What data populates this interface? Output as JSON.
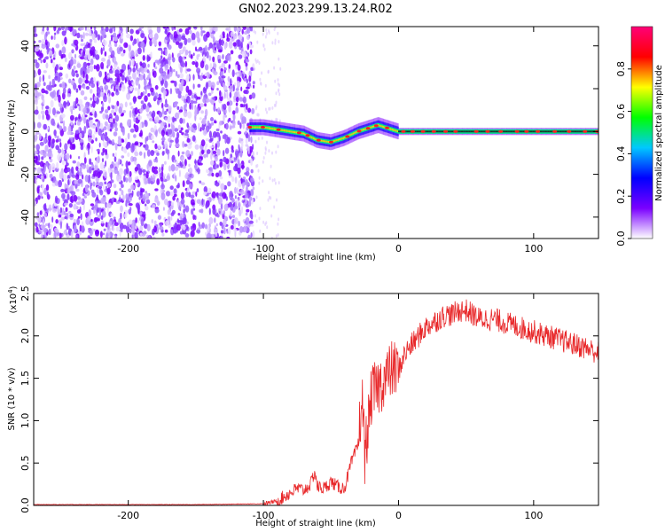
{
  "title": "GN02.2023.299.13.24.R02",
  "chart_data": [
    {
      "type": "heatmap",
      "xlabel": "Height of straight line (km)",
      "ylabel": "Frequency (Hz)",
      "xlim": [
        -270,
        148
      ],
      "ylim": [
        -50,
        49
      ],
      "xticks": [
        -200,
        -100,
        0,
        100
      ],
      "yticks": [
        -40,
        -20,
        0,
        20,
        40
      ],
      "xtick_labels": [
        "-200",
        "-100",
        "0",
        "100"
      ],
      "ytick_labels": [
        "-40",
        "-20",
        "0",
        "20",
        "40"
      ],
      "noise_region_x": [
        -270,
        -107
      ],
      "trace": {
        "x": [
          -110,
          -100,
          -90,
          -80,
          -70,
          -60,
          -50,
          -40,
          -30,
          -20,
          -15,
          -10,
          -5,
          0,
          10,
          50,
          100,
          148
        ],
        "y": [
          2,
          2,
          1,
          0,
          -1,
          -4,
          -5,
          -3,
          0,
          2,
          3,
          2,
          1,
          0,
          0,
          0,
          0,
          0
        ]
      },
      "colorbar": {
        "label": "Normalized spectral amplitude",
        "range": [
          0,
          1
        ],
        "ticks": [
          0,
          0.2,
          0.4,
          0.6,
          0.8
        ],
        "tick_labels": [
          "0.0",
          "0.2",
          "0.4",
          "0.6",
          "0.8"
        ],
        "colors": [
          "#ffffff",
          "#7a00ff",
          "#0000ff",
          "#00c8ff",
          "#00ff00",
          "#ffff00",
          "#ff0000",
          "#ff0078"
        ]
      }
    },
    {
      "type": "line",
      "xlabel": "Height of straight line (km)",
      "ylabel": "SNR (10 * v/v)",
      "y_multiplier_base": "x10",
      "y_multiplier_exp": "4",
      "xlim": [
        -270,
        148
      ],
      "ylim": [
        0,
        2.5
      ],
      "xticks": [
        -200,
        -100,
        0,
        100
      ],
      "yticks": [
        0,
        0.5,
        1.0,
        1.5,
        2.0,
        2.5
      ],
      "xtick_labels": [
        "-200",
        "-100",
        "0",
        "100"
      ],
      "ytick_labels": [
        "0.0",
        "0.5",
        "1.0",
        "1.5",
        "2.0",
        "2.5"
      ],
      "line_color": "#e8282a",
      "series": [
        {
          "x": [
            -270,
            -150,
            -100,
            -90,
            -85,
            -80,
            -75,
            -70,
            -65,
            -62,
            -60,
            -55,
            -50,
            -45,
            -40,
            -35,
            -30,
            -27,
            -25,
            -22,
            -20,
            -15,
            -10,
            -5,
            0,
            5,
            10,
            15,
            20,
            25,
            30,
            35,
            40,
            45,
            50,
            55,
            60,
            70,
            80,
            90,
            100,
            110,
            120,
            130,
            140,
            148
          ],
          "y": [
            0.01,
            0.01,
            0.02,
            0.05,
            0.1,
            0.15,
            0.2,
            0.18,
            0.25,
            0.4,
            0.22,
            0.2,
            0.28,
            0.22,
            0.2,
            0.5,
            0.7,
            1.3,
            0.6,
            1.0,
            1.3,
            1.4,
            1.5,
            1.6,
            1.6,
            1.8,
            1.9,
            2.0,
            2.1,
            2.15,
            2.2,
            2.25,
            2.25,
            2.3,
            2.3,
            2.25,
            2.2,
            2.2,
            2.15,
            2.1,
            2.05,
            2.0,
            1.95,
            1.9,
            1.85,
            1.8
          ]
        }
      ]
    }
  ]
}
